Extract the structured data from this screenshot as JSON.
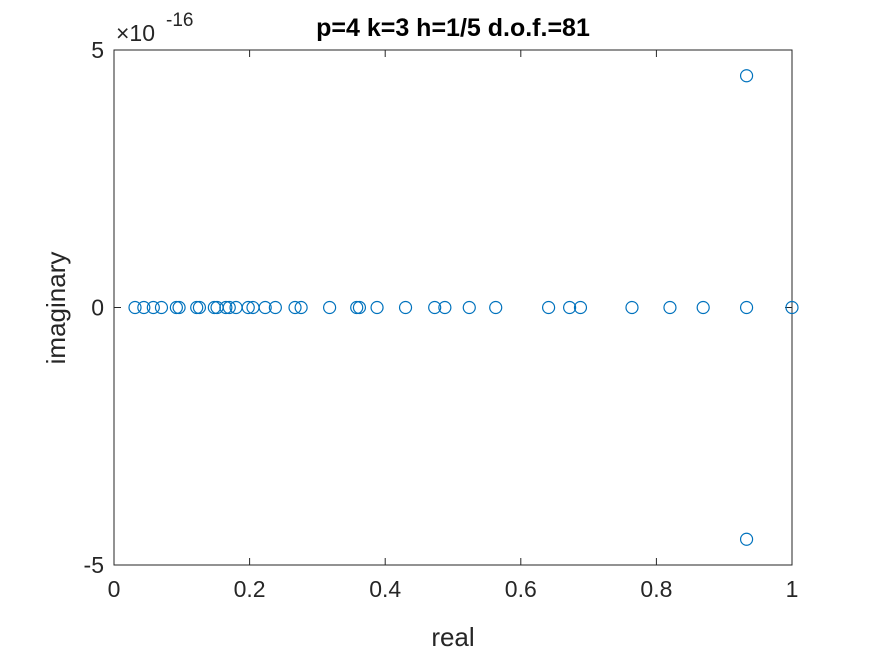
{
  "chart_data": {
    "type": "scatter",
    "title": "p=4 k=3 h=1/5 d.o.f.=81",
    "xlabel": "real",
    "ylabel": "imaginary",
    "xlim": [
      0,
      1
    ],
    "ylim": [
      -5e-16,
      5e-16
    ],
    "y_exponent_prefix": "×10",
    "y_exponent_power": "-16",
    "xticks": [
      "0",
      "0.2",
      "0.4",
      "0.6",
      "0.8",
      "1"
    ],
    "yticks": [
      "-5",
      "0",
      "5"
    ],
    "grid": false,
    "marker": "circle-open",
    "colors": {
      "marker": "#0072BD",
      "axis": "#262626"
    },
    "points": [
      {
        "x": 0.031,
        "y": 0
      },
      {
        "x": 0.044,
        "y": 0
      },
      {
        "x": 0.058,
        "y": 0
      },
      {
        "x": 0.07,
        "y": 0
      },
      {
        "x": 0.092,
        "y": 0
      },
      {
        "x": 0.096,
        "y": 0
      },
      {
        "x": 0.122,
        "y": 0
      },
      {
        "x": 0.126,
        "y": 0
      },
      {
        "x": 0.148,
        "y": 0
      },
      {
        "x": 0.152,
        "y": 0
      },
      {
        "x": 0.165,
        "y": 0
      },
      {
        "x": 0.17,
        "y": 0
      },
      {
        "x": 0.18,
        "y": 0
      },
      {
        "x": 0.198,
        "y": 0
      },
      {
        "x": 0.205,
        "y": 0
      },
      {
        "x": 0.223,
        "y": 0
      },
      {
        "x": 0.238,
        "y": 0
      },
      {
        "x": 0.267,
        "y": 0
      },
      {
        "x": 0.276,
        "y": 0
      },
      {
        "x": 0.318,
        "y": 0
      },
      {
        "x": 0.358,
        "y": 0
      },
      {
        "x": 0.362,
        "y": 0
      },
      {
        "x": 0.388,
        "y": 0
      },
      {
        "x": 0.43,
        "y": 0
      },
      {
        "x": 0.473,
        "y": 0
      },
      {
        "x": 0.488,
        "y": 0
      },
      {
        "x": 0.524,
        "y": 0
      },
      {
        "x": 0.563,
        "y": 0
      },
      {
        "x": 0.641,
        "y": 0
      },
      {
        "x": 0.672,
        "y": 0
      },
      {
        "x": 0.688,
        "y": 0
      },
      {
        "x": 0.764,
        "y": 0
      },
      {
        "x": 0.82,
        "y": 0
      },
      {
        "x": 0.869,
        "y": 0
      },
      {
        "x": 0.933,
        "y": 0
      },
      {
        "x": 1.0,
        "y": 0
      },
      {
        "x": 0.933,
        "y": 4.5e-16
      },
      {
        "x": 0.933,
        "y": -4.5e-16
      }
    ]
  }
}
